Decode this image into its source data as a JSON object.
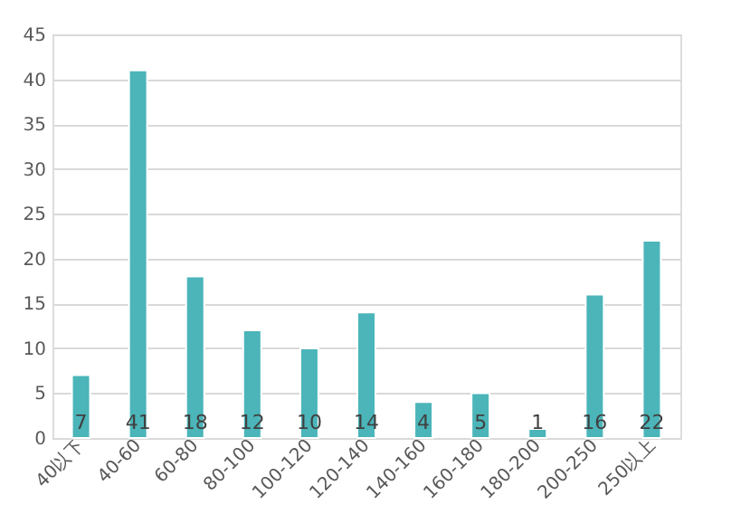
{
  "chart_data": {
    "type": "bar",
    "categories": [
      "40以下",
      "40-60",
      "60-80",
      "80-100",
      "100-120",
      "120-140",
      "140-160",
      "160-180",
      "180-200",
      "200-250",
      "250以上"
    ],
    "values": [
      7,
      41,
      18,
      12,
      10,
      14,
      4,
      5,
      1,
      16,
      22
    ],
    "color": "#4bb5b9",
    "ylim": [
      0,
      45
    ],
    "yticks": [
      0,
      5,
      10,
      15,
      20,
      25,
      30,
      35,
      40,
      45
    ],
    "grid": "y",
    "data_labels": true
  }
}
